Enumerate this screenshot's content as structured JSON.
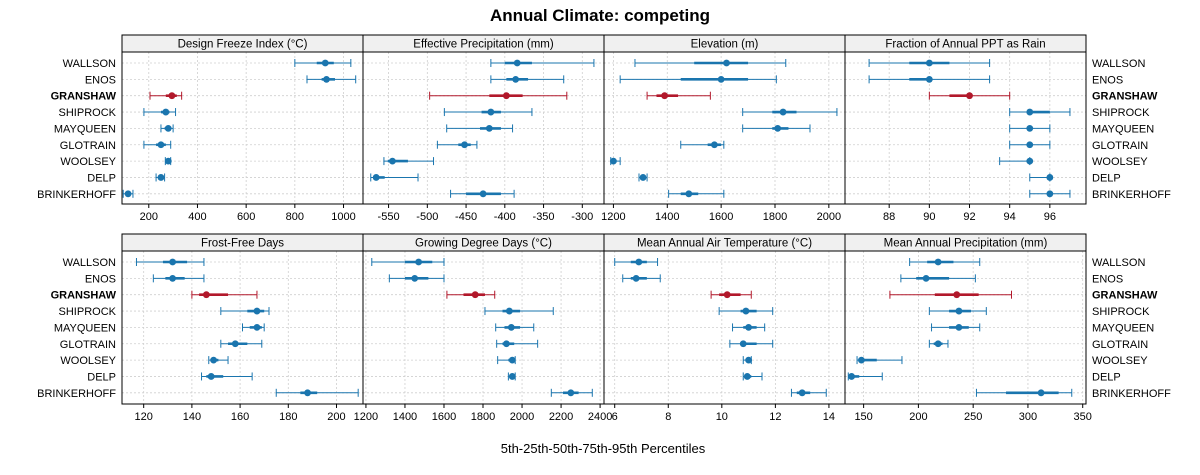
{
  "chart_data": {
    "type": "interval-dotplot",
    "title": "Annual Climate: competing",
    "xlabel": "5th-25th-50th-75th-95th Percentiles",
    "sites": [
      "WALLSON",
      "ENOS",
      "GRANSHAW",
      "SHIPROCK",
      "MAYQUEEN",
      "GLOTRAIN",
      "WOOLSEY",
      "DELP",
      "BRINKERHOFF"
    ],
    "highlight_site": "GRANSHAW",
    "colors": {
      "normal": "#1a75ae",
      "highlight": "#b2182b"
    },
    "panels": [
      {
        "name": "Design Freeze Index (°C)",
        "xlim": [
          90,
          1080
        ],
        "ticks": [
          200,
          400,
          600,
          800,
          1000
        ],
        "tick_labels": [
          "200",
          "400",
          "600",
          "800",
          "1000"
        ],
        "data": [
          {
            "site": "WALLSON",
            "p5": 800,
            "p25": 890,
            "p50": 925,
            "p75": 960,
            "p95": 1030
          },
          {
            "site": "ENOS",
            "p5": 850,
            "p25": 910,
            "p50": 930,
            "p75": 965,
            "p95": 1050
          },
          {
            "site": "GRANSHAW",
            "p5": 205,
            "p25": 270,
            "p50": 295,
            "p75": 315,
            "p95": 335
          },
          {
            "site": "SHIPROCK",
            "p5": 180,
            "p25": 250,
            "p50": 270,
            "p75": 285,
            "p95": 310
          },
          {
            "site": "MAYQUEEN",
            "p5": 250,
            "p25": 265,
            "p50": 280,
            "p75": 290,
            "p95": 300
          },
          {
            "site": "GLOTRAIN",
            "p5": 180,
            "p25": 230,
            "p50": 250,
            "p75": 270,
            "p95": 290
          },
          {
            "site": "WOOLSEY",
            "p5": 268,
            "p25": 276,
            "p50": 280,
            "p75": 284,
            "p95": 290
          },
          {
            "site": "DELP",
            "p5": 230,
            "p25": 242,
            "p50": 250,
            "p75": 257,
            "p95": 265
          },
          {
            "site": "BRINKERHOFF",
            "p5": 95,
            "p25": 108,
            "p50": 115,
            "p75": 122,
            "p95": 135
          }
        ]
      },
      {
        "name": "Effective Precipitation (mm)",
        "xlim": [
          -583,
          -272
        ],
        "ticks": [
          -550,
          -500,
          -450,
          -400,
          -350,
          -300
        ],
        "tick_labels": [
          "-550",
          "-500",
          "-450",
          "-400",
          "-350",
          "-300"
        ],
        "data": [
          {
            "site": "WALLSON",
            "p5": -418,
            "p25": -400,
            "p50": -384,
            "p75": -365,
            "p95": -285
          },
          {
            "site": "ENOS",
            "p5": -418,
            "p25": -398,
            "p50": -386,
            "p75": -370,
            "p95": -324
          },
          {
            "site": "GRANSHAW",
            "p5": -497,
            "p25": -420,
            "p50": -398,
            "p75": -377,
            "p95": -320
          },
          {
            "site": "SHIPROCK",
            "p5": -478,
            "p25": -430,
            "p50": -418,
            "p75": -405,
            "p95": -365
          },
          {
            "site": "MAYQUEEN",
            "p5": -475,
            "p25": -432,
            "p50": -420,
            "p75": -405,
            "p95": -390
          },
          {
            "site": "GLOTRAIN",
            "p5": -487,
            "p25": -460,
            "p50": -452,
            "p75": -444,
            "p95": -436
          },
          {
            "site": "WOOLSEY",
            "p5": -556,
            "p25": -551,
            "p50": -545,
            "p75": -525,
            "p95": -492
          },
          {
            "site": "DELP",
            "p5": -573,
            "p25": -570,
            "p50": -566,
            "p75": -555,
            "p95": -512
          },
          {
            "site": "BRINKERHOFF",
            "p5": -470,
            "p25": -450,
            "p50": -428,
            "p75": -405,
            "p95": -388
          }
        ]
      },
      {
        "name": "Elevation (m)",
        "xlim": [
          1165,
          2060
        ],
        "ticks": [
          1200,
          1400,
          1600,
          1800,
          2000
        ],
        "tick_labels": [
          "1200",
          "1400",
          "1600",
          "1800",
          "2000"
        ],
        "data": [
          {
            "site": "WALLSON",
            "p5": 1280,
            "p25": 1500,
            "p50": 1620,
            "p75": 1700,
            "p95": 1840
          },
          {
            "site": "ENOS",
            "p5": 1225,
            "p25": 1450,
            "p50": 1600,
            "p75": 1700,
            "p95": 1805
          },
          {
            "site": "GRANSHAW",
            "p5": 1325,
            "p25": 1360,
            "p50": 1390,
            "p75": 1440,
            "p95": 1560
          },
          {
            "site": "SHIPROCK",
            "p5": 1680,
            "p25": 1790,
            "p50": 1830,
            "p75": 1880,
            "p95": 2030
          },
          {
            "site": "MAYQUEEN",
            "p5": 1680,
            "p25": 1790,
            "p50": 1810,
            "p75": 1850,
            "p95": 1930
          },
          {
            "site": "GLOTRAIN",
            "p5": 1450,
            "p25": 1550,
            "p50": 1575,
            "p75": 1600,
            "p95": 1610
          },
          {
            "site": "WOOLSEY",
            "p5": 1190,
            "p25": 1193,
            "p50": 1200,
            "p75": 1210,
            "p95": 1225
          },
          {
            "site": "DELP",
            "p5": 1295,
            "p25": 1302,
            "p50": 1310,
            "p75": 1318,
            "p95": 1325
          },
          {
            "site": "BRINKERHOFF",
            "p5": 1405,
            "p25": 1450,
            "p50": 1480,
            "p75": 1515,
            "p95": 1610
          }
        ]
      },
      {
        "name": "Fraction of Annual PPT as Rain",
        "xlim": [
          85.8,
          97.8
        ],
        "ticks": [
          88,
          90,
          92,
          94,
          96
        ],
        "tick_labels": [
          "88",
          "90",
          "92",
          "94",
          "96"
        ],
        "data": [
          {
            "site": "WALLSON",
            "p5": 87,
            "p25": 89,
            "p50": 90,
            "p75": 91,
            "p95": 93
          },
          {
            "site": "ENOS",
            "p5": 87,
            "p25": 89,
            "p50": 90,
            "p75": 90,
            "p95": 93
          },
          {
            "site": "GRANSHAW",
            "p5": 90,
            "p25": 91,
            "p50": 92,
            "p75": 92,
            "p95": 94
          },
          {
            "site": "SHIPROCK",
            "p5": 94,
            "p25": 95,
            "p50": 95,
            "p75": 96,
            "p95": 97
          },
          {
            "site": "MAYQUEEN",
            "p5": 94,
            "p25": 95,
            "p50": 95,
            "p75": 95,
            "p95": 96
          },
          {
            "site": "GLOTRAIN",
            "p5": 94,
            "p25": 95,
            "p50": 95,
            "p75": 95,
            "p95": 96
          },
          {
            "site": "WOOLSEY",
            "p5": 93.5,
            "p25": 95,
            "p50": 95,
            "p75": 95,
            "p95": 95
          },
          {
            "site": "DELP",
            "p5": 95,
            "p25": 96,
            "p50": 96,
            "p75": 96,
            "p95": 96
          },
          {
            "site": "BRINKERHOFF",
            "p5": 95,
            "p25": 96,
            "p50": 96,
            "p75": 96,
            "p95": 97
          }
        ]
      },
      {
        "name": "Frost-Free Days",
        "xlim": [
          111,
          211
        ],
        "ticks": [
          120,
          140,
          160,
          180,
          200
        ],
        "tick_labels": [
          "120",
          "140",
          "160",
          "180",
          "200"
        ],
        "data": [
          {
            "site": "WALLSON",
            "p5": 117,
            "p25": 128,
            "p50": 132,
            "p75": 138,
            "p95": 145
          },
          {
            "site": "ENOS",
            "p5": 124,
            "p25": 129,
            "p50": 132,
            "p75": 137,
            "p95": 145
          },
          {
            "site": "GRANSHAW",
            "p5": 140,
            "p25": 143,
            "p50": 146,
            "p75": 155,
            "p95": 167
          },
          {
            "site": "SHIPROCK",
            "p5": 152,
            "p25": 163,
            "p50": 167,
            "p75": 170,
            "p95": 172
          },
          {
            "site": "MAYQUEEN",
            "p5": 161,
            "p25": 164,
            "p50": 167,
            "p75": 169,
            "p95": 170
          },
          {
            "site": "GLOTRAIN",
            "p5": 152,
            "p25": 155,
            "p50": 158,
            "p75": 163,
            "p95": 169
          },
          {
            "site": "WOOLSEY",
            "p5": 147,
            "p25": 148,
            "p50": 149,
            "p75": 151,
            "p95": 155
          },
          {
            "site": "DELP",
            "p5": 144,
            "p25": 146,
            "p50": 148,
            "p75": 153,
            "p95": 165
          },
          {
            "site": "BRINKERHOFF",
            "p5": 175,
            "p25": 185,
            "p50": 188,
            "p75": 192,
            "p95": 209
          }
        ]
      },
      {
        "name": "Growing Degree Days (°C)",
        "xlim": [
          1185,
          2420
        ],
        "ticks": [
          1200,
          1400,
          1600,
          1800,
          2000,
          2200,
          2400
        ],
        "tick_labels": [
          "1200",
          "1400",
          "1600",
          "1800",
          "2000",
          "2200",
          "2400"
        ],
        "data": [
          {
            "site": "WALLSON",
            "p5": 1230,
            "p25": 1400,
            "p50": 1470,
            "p75": 1540,
            "p95": 1600
          },
          {
            "site": "ENOS",
            "p5": 1320,
            "p25": 1400,
            "p50": 1450,
            "p75": 1520,
            "p95": 1600
          },
          {
            "site": "GRANSHAW",
            "p5": 1615,
            "p25": 1700,
            "p50": 1760,
            "p75": 1810,
            "p95": 1860
          },
          {
            "site": "SHIPROCK",
            "p5": 1810,
            "p25": 1900,
            "p50": 1935,
            "p75": 1990,
            "p95": 2160
          },
          {
            "site": "MAYQUEEN",
            "p5": 1865,
            "p25": 1910,
            "p50": 1945,
            "p75": 1990,
            "p95": 2060
          },
          {
            "site": "GLOTRAIN",
            "p5": 1870,
            "p25": 1900,
            "p50": 1920,
            "p75": 1960,
            "p95": 2080
          },
          {
            "site": "WOOLSEY",
            "p5": 1875,
            "p25": 1930,
            "p50": 1950,
            "p75": 1955,
            "p95": 1965
          },
          {
            "site": "DELP",
            "p5": 1930,
            "p25": 1940,
            "p50": 1950,
            "p75": 1955,
            "p95": 1965
          },
          {
            "site": "BRINKERHOFF",
            "p5": 2150,
            "p25": 2210,
            "p50": 2250,
            "p75": 2290,
            "p95": 2360
          }
        ]
      },
      {
        "name": "Mean Annual Air Temperature (°C)",
        "xlim": [
          5.6,
          14.6
        ],
        "ticks": [
          6,
          8,
          10,
          12,
          14
        ],
        "tick_labels": [
          "6",
          "8",
          "10",
          "12",
          "14"
        ],
        "data": [
          {
            "site": "WALLSON",
            "p5": 6.0,
            "p25": 6.6,
            "p50": 6.9,
            "p75": 7.2,
            "p95": 7.6
          },
          {
            "site": "ENOS",
            "p5": 6.3,
            "p25": 6.6,
            "p50": 6.8,
            "p75": 7.2,
            "p95": 7.7
          },
          {
            "site": "GRANSHAW",
            "p5": 9.6,
            "p25": 9.9,
            "p50": 10.2,
            "p75": 10.7,
            "p95": 11.1
          },
          {
            "site": "SHIPROCK",
            "p5": 9.9,
            "p25": 10.7,
            "p50": 10.9,
            "p75": 11.3,
            "p95": 11.9
          },
          {
            "site": "MAYQUEEN",
            "p5": 10.4,
            "p25": 10.8,
            "p50": 11.0,
            "p75": 11.3,
            "p95": 11.6
          },
          {
            "site": "GLOTRAIN",
            "p5": 10.3,
            "p25": 10.7,
            "p50": 10.8,
            "p75": 11.3,
            "p95": 11.9
          },
          {
            "site": "WOOLSEY",
            "p5": 10.8,
            "p25": 10.9,
            "p50": 11.0,
            "p75": 11.05,
            "p95": 11.1
          },
          {
            "site": "DELP",
            "p5": 10.8,
            "p25": 10.9,
            "p50": 10.95,
            "p75": 11.1,
            "p95": 11.5
          },
          {
            "site": "BRINKERHOFF",
            "p5": 12.6,
            "p25": 12.8,
            "p50": 13.0,
            "p75": 13.3,
            "p95": 13.9
          }
        ]
      },
      {
        "name": "Mean Annual Precipitation (mm)",
        "xlim": [
          133,
          353
        ],
        "ticks": [
          150,
          200,
          250,
          300,
          350
        ],
        "tick_labels": [
          "150",
          "200",
          "250",
          "300",
          "350"
        ],
        "data": [
          {
            "site": "WALLSON",
            "p5": 192,
            "p25": 208,
            "p50": 218,
            "p75": 232,
            "p95": 256
          },
          {
            "site": "ENOS",
            "p5": 184,
            "p25": 198,
            "p50": 207,
            "p75": 228,
            "p95": 252
          },
          {
            "site": "GRANSHAW",
            "p5": 174,
            "p25": 215,
            "p50": 235,
            "p75": 255,
            "p95": 285
          },
          {
            "site": "SHIPROCK",
            "p5": 210,
            "p25": 228,
            "p50": 237,
            "p75": 248,
            "p95": 262
          },
          {
            "site": "MAYQUEEN",
            "p5": 212,
            "p25": 228,
            "p50": 237,
            "p75": 246,
            "p95": 256
          },
          {
            "site": "GLOTRAIN",
            "p5": 210,
            "p25": 214,
            "p50": 218,
            "p75": 222,
            "p95": 227
          },
          {
            "site": "WOOLSEY",
            "p5": 144,
            "p25": 146,
            "p50": 148,
            "p75": 162,
            "p95": 185
          },
          {
            "site": "DELP",
            "p5": 136,
            "p25": 137,
            "p50": 139,
            "p75": 146,
            "p95": 167
          },
          {
            "site": "BRINKERHOFF",
            "p5": 253,
            "p25": 280,
            "p50": 312,
            "p75": 328,
            "p95": 340
          }
        ]
      }
    ]
  }
}
